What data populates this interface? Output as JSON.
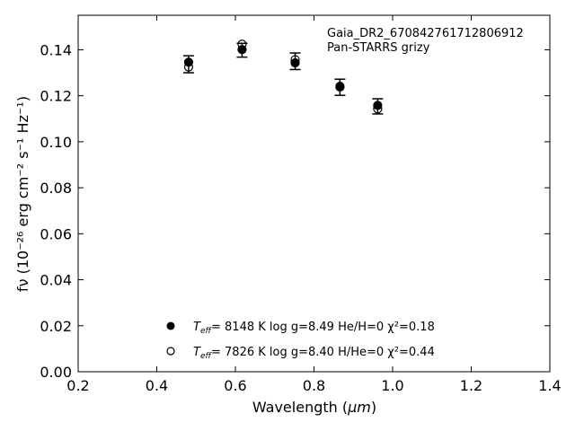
{
  "chart_data": {
    "type": "scatter",
    "xlabel_prefix": "Wavelength (",
    "xlabel_unit": "μm",
    "xlabel_suffix": ")",
    "ylabel": "fν (10⁻²⁶ erg cm⁻² s⁻¹ Hz⁻¹)",
    "xlim": [
      0.2,
      1.4
    ],
    "ylim": [
      0.0,
      0.155
    ],
    "x_ticks": [
      0.2,
      0.4,
      0.6,
      0.8,
      1.0,
      1.2,
      1.4
    ],
    "x_tick_labels": [
      "0.2",
      "0.4",
      "0.6",
      "0.8",
      "1.0",
      "1.2",
      "1.4"
    ],
    "y_ticks": [
      0.0,
      0.02,
      0.04,
      0.06,
      0.08,
      0.1,
      0.12,
      0.14
    ],
    "y_tick_labels": [
      "0.00",
      "0.02",
      "0.04",
      "0.06",
      "0.08",
      "0.10",
      "0.12",
      "0.14"
    ],
    "grid": false,
    "annotation": [
      "Gaia_DR2_670842761712806912",
      "Pan-STARRS grizy"
    ],
    "observed": {
      "x": [
        0.481,
        0.617,
        0.752,
        0.866,
        0.962
      ],
      "y": [
        0.1337,
        0.1398,
        0.135,
        0.1237,
        0.1154
      ],
      "err": [
        0.0037,
        0.003,
        0.0036,
        0.0035,
        0.0033
      ]
    },
    "series": [
      {
        "marker": "filled-circle",
        "legend": {
          "teff_label": "T",
          "teff_sub": "eff",
          "rest": "=  8148 K  log g=8.49  He/H=0  χ²=0.18"
        },
        "x": [
          0.481,
          0.617,
          0.752,
          0.866,
          0.962
        ],
        "y": [
          0.1346,
          0.1401,
          0.1343,
          0.1241,
          0.1158
        ]
      },
      {
        "marker": "open-circle",
        "legend": {
          "teff_label": "T",
          "teff_sub": "eff",
          "rest": "=  7826 K  log g=8.40  H/He=0  χ²=0.44"
        },
        "x": [
          0.481,
          0.617,
          0.752,
          0.866,
          0.962
        ],
        "y": [
          0.1325,
          0.1424,
          0.1357,
          0.1238,
          0.1143
        ]
      }
    ]
  }
}
